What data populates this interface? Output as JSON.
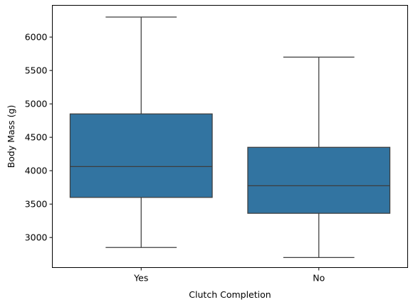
{
  "chart_data": {
    "type": "box",
    "xlabel": "Clutch Completion",
    "ylabel": "Body Mass (g)",
    "categories": [
      "Yes",
      "No"
    ],
    "boxes": [
      {
        "category": "Yes",
        "whisker_low": 2850,
        "q1": 3600,
        "median": 4062,
        "q3": 4850,
        "whisker_high": 6300
      },
      {
        "category": "No",
        "whisker_low": 2700,
        "q1": 3362,
        "median": 3775,
        "q3": 4350,
        "whisker_high": 5700
      }
    ],
    "ylim": [
      2550,
      6475
    ],
    "yticks": [
      3000,
      3500,
      4000,
      4500,
      5000,
      5500,
      6000
    ],
    "box_color": "#3274a1",
    "line_color": "#3d3d3d",
    "grid": false
  }
}
